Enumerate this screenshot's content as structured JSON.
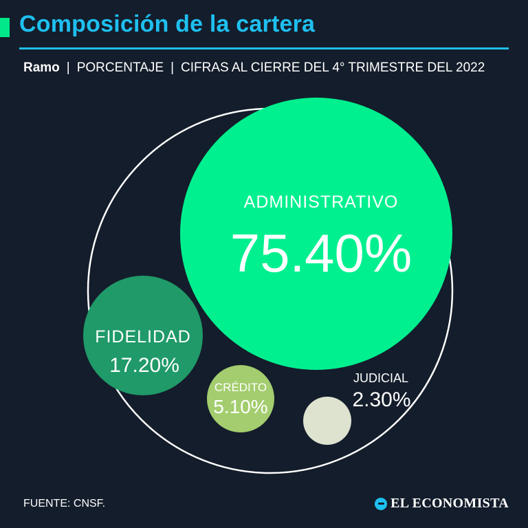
{
  "title": "Composición de la cartera",
  "subtitle": {
    "label": "Ramo",
    "separator": "|",
    "unit": "PORCENTAJE",
    "note": "CIFRAS AL CIERRE DEL 4° TRIMESTRE DEL 2022"
  },
  "chart_data": {
    "type": "bubble",
    "title": "Composición de la cartera",
    "categories": [
      "ADMINISTRATIVO",
      "FIDELIDAD",
      "CRÉDITO",
      "JUDICIAL"
    ],
    "values": [
      75.4,
      17.2,
      5.1,
      2.3
    ],
    "value_labels": [
      "75.40%",
      "17.20%",
      "5.10%",
      "2.30%"
    ],
    "colors": [
      "#00f08f",
      "#1f9a68",
      "#a3cd6e",
      "#dde3cf"
    ],
    "outline_color": "#ffffff",
    "accent": "#1ec0f0"
  },
  "footer": {
    "source": "FUENTE: CNSF.",
    "brand": "EL ECONOMISTA"
  }
}
